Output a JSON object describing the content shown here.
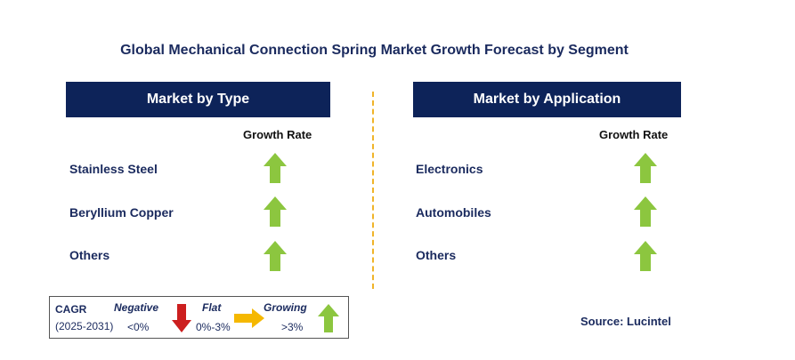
{
  "title": "Global Mechanical Connection Spring Market Growth Forecast by Segment",
  "left_panel": {
    "header": "Market by Type",
    "growth_label": "Growth Rate",
    "rows": [
      {
        "label": "Stainless Steel",
        "trend": "growing"
      },
      {
        "label": "Beryllium Copper",
        "trend": "growing"
      },
      {
        "label": "Others",
        "trend": "growing"
      }
    ]
  },
  "right_panel": {
    "header": "Market by Application",
    "growth_label": "Growth Rate",
    "rows": [
      {
        "label": "Electronics",
        "trend": "growing"
      },
      {
        "label": "Automobiles",
        "trend": "growing"
      },
      {
        "label": "Others",
        "trend": "growing"
      }
    ]
  },
  "legend": {
    "cagr": "CAGR",
    "period": "(2025-2031)",
    "negative": {
      "label": "Negative",
      "range": "<0%"
    },
    "flat": {
      "label": "Flat",
      "range": "0%-3%"
    },
    "growing": {
      "label": "Growing",
      "range": ">3%"
    }
  },
  "source": "Source: Lucintel",
  "colors": {
    "header_bg": "#0d2359",
    "growing": "#8cc63f",
    "negative": "#cc1f1f",
    "flat": "#f5b800",
    "divider": "#f0b429"
  }
}
